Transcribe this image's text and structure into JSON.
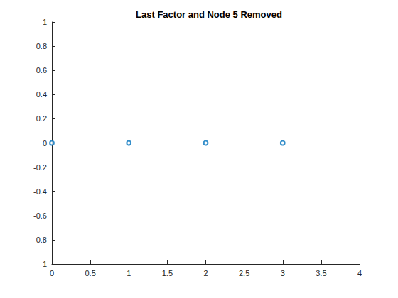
{
  "chart_data": {
    "type": "line",
    "title": "Last Factor and Node 5 Removed",
    "x": [
      0,
      1,
      2,
      3
    ],
    "series": [
      {
        "type": "line",
        "color": "#d95319",
        "marker": "none",
        "line_style": "solid",
        "values": [
          0,
          0,
          0,
          0
        ]
      },
      {
        "type": "scatter",
        "color": "#0072bd",
        "marker": "circle",
        "values": [
          0,
          0,
          0,
          0
        ]
      }
    ],
    "xlim": [
      0,
      4
    ],
    "xticks": [
      0,
      0.5,
      1,
      1.5,
      2,
      2.5,
      3,
      3.5,
      4
    ],
    "ylim": [
      -1,
      1
    ],
    "yticks": [
      -1,
      -0.8,
      -0.6,
      -0.4,
      -0.2,
      0,
      0.2,
      0.4,
      0.6,
      0.8,
      1
    ],
    "grid": false
  }
}
